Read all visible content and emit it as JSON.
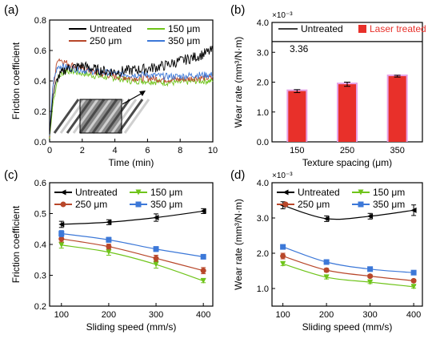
{
  "colors": {
    "untreated": "#000000",
    "um150": "#6fc41a",
    "um250": "#b8472a",
    "um350": "#3c78d8",
    "bar": "#e8302a",
    "bar_halo": "#e6a1e6"
  },
  "chart_data": [
    {
      "panel": "(a)",
      "type": "line",
      "xlabel": "Time (min)",
      "ylabel": "Friction coefficient",
      "xlim": [
        0,
        10
      ],
      "ylim": [
        0.0,
        0.8
      ],
      "xticks": [
        "0",
        "2",
        "4",
        "6",
        "8",
        "10"
      ],
      "yticks": [
        "0.0",
        "0.2",
        "0.4",
        "0.6",
        "0.8"
      ],
      "legend": [
        "Untreated",
        "150 μm",
        "250 μm",
        "350 μm"
      ],
      "legend_position": "top",
      "inset": "surface micrograph",
      "series": [
        {
          "name": "Untreated",
          "x": [
            0,
            0.2,
            0.5,
            1,
            2,
            3,
            4,
            5,
            6,
            7,
            8,
            9,
            10
          ],
          "y": [
            0.05,
            0.3,
            0.42,
            0.48,
            0.5,
            0.47,
            0.46,
            0.47,
            0.48,
            0.5,
            0.53,
            0.56,
            0.6
          ]
        },
        {
          "name": "150 μm",
          "x": [
            0,
            0.2,
            0.5,
            1,
            2,
            3,
            4,
            5,
            6,
            7,
            8,
            9,
            10
          ],
          "y": [
            0.02,
            0.25,
            0.42,
            0.47,
            0.45,
            0.43,
            0.42,
            0.4,
            0.4,
            0.39,
            0.39,
            0.4,
            0.4
          ]
        },
        {
          "name": "250 μm",
          "x": [
            0,
            0.2,
            0.5,
            1,
            2,
            3,
            4,
            5,
            6,
            7,
            8,
            9,
            10
          ],
          "y": [
            0.03,
            0.35,
            0.55,
            0.52,
            0.48,
            0.45,
            0.43,
            0.42,
            0.42,
            0.41,
            0.41,
            0.42,
            0.42
          ]
        },
        {
          "name": "350 μm",
          "x": [
            0,
            0.2,
            0.5,
            1,
            2,
            3,
            4,
            5,
            6,
            7,
            8,
            9,
            10
          ],
          "y": [
            0.04,
            0.38,
            0.5,
            0.49,
            0.47,
            0.46,
            0.45,
            0.44,
            0.44,
            0.43,
            0.43,
            0.44,
            0.44
          ]
        }
      ]
    },
    {
      "panel": "(b)",
      "type": "bar",
      "xlabel": "Texture spacing (μm)",
      "ylabel": "Wear rate (mm³/N·m)",
      "y_multiplier": "×10⁻³",
      "categories": [
        "150",
        "250",
        "350"
      ],
      "ylim": [
        0.0,
        4.0
      ],
      "yticks": [
        "0.0",
        "1.0",
        "2.0",
        "3.0",
        "4.0"
      ],
      "legend": [
        "Untreated",
        "Laser treated"
      ],
      "reference_line": {
        "name": "Untreated",
        "value": 3.36,
        "label": "3.36"
      },
      "series": [
        {
          "name": "Laser treated",
          "values": [
            1.7,
            1.93,
            2.2
          ],
          "errors": [
            0.05,
            0.07,
            0.03
          ]
        }
      ]
    },
    {
      "panel": "(c)",
      "type": "line",
      "xlabel": "Sliding speed (mm/s)",
      "ylabel": "Friction coefficient",
      "x": [
        100,
        200,
        300,
        400
      ],
      "xlim": [
        75,
        420
      ],
      "ylim": [
        0.2,
        0.6
      ],
      "xticks": [
        "100",
        "200",
        "300",
        "400"
      ],
      "yticks": [
        "0.2",
        "0.3",
        "0.4",
        "0.5",
        "0.6"
      ],
      "legend": [
        "Untreated",
        "150 μm",
        "250 μm",
        "350 μm"
      ],
      "series": [
        {
          "name": "Untreated",
          "values": [
            0.465,
            0.472,
            0.487,
            0.508
          ],
          "errors": [
            0.01,
            0.008,
            0.012,
            0.008
          ]
        },
        {
          "name": "150 μm",
          "values": [
            0.398,
            0.375,
            0.335,
            0.282
          ],
          "errors": [
            0.01,
            0.01,
            0.012,
            0.006
          ]
        },
        {
          "name": "250 μm",
          "values": [
            0.418,
            0.393,
            0.355,
            0.315
          ],
          "errors": [
            0.01,
            0.008,
            0.01,
            0.01
          ]
        },
        {
          "name": "350 μm",
          "values": [
            0.435,
            0.415,
            0.385,
            0.36
          ],
          "errors": [
            0.01,
            0.008,
            0.008,
            0.005
          ]
        }
      ]
    },
    {
      "panel": "(d)",
      "type": "line",
      "xlabel": "Sliding speed (mm/s)",
      "ylabel": "Wear rate (mm³/N·m)",
      "y_multiplier": "×10⁻³",
      "x": [
        100,
        200,
        300,
        400
      ],
      "xlim": [
        75,
        420
      ],
      "ylim": [
        0.5,
        4.0
      ],
      "xticks": [
        "100",
        "200",
        "300",
        "400"
      ],
      "yticks": [
        "1.0",
        "2.0",
        "3.0",
        "4.0"
      ],
      "legend": [
        "Untreated",
        "150 μm",
        "250 μm",
        "350 μm"
      ],
      "series": [
        {
          "name": "Untreated",
          "values": [
            3.36,
            2.98,
            3.05,
            3.22
          ],
          "errors": [
            0.1,
            0.08,
            0.08,
            0.15
          ]
        },
        {
          "name": "150 μm",
          "values": [
            1.7,
            1.32,
            1.18,
            1.05
          ],
          "errors": [
            0.05,
            0.05,
            0.04,
            0.04
          ]
        },
        {
          "name": "250 μm",
          "values": [
            1.92,
            1.52,
            1.35,
            1.22
          ],
          "errors": [
            0.08,
            0.05,
            0.04,
            0.04
          ]
        },
        {
          "name": "350 μm",
          "values": [
            2.18,
            1.75,
            1.55,
            1.45
          ],
          "errors": [
            0.04,
            0.04,
            0.04,
            0.05
          ]
        }
      ]
    }
  ]
}
